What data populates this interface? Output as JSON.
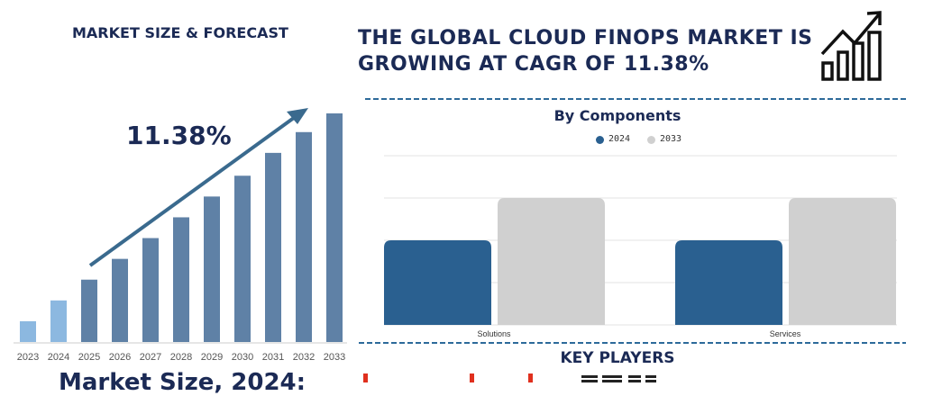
{
  "left_title": "MARKET SIZE & FORECAST",
  "main_title_line1": "THE GLOBAL CLOUD FINOPS MARKET IS",
  "main_title_line2": "GROWING AT CAGR OF 11.38%",
  "header_icon": "growth-chart-arrow-icon",
  "bottom_text": "Market Size, 2024:",
  "key_players_title": "KEY PLAYERS",
  "logos": [
    "red-logo",
    "IBM"
  ],
  "colors": {
    "navy": "#1b2a55",
    "bar_light": "#8cb8e0",
    "bar_dark": "#5f81a6",
    "series_2024": "#2a6090",
    "series_2033": "#d0d0d0",
    "dash": "#2d6a9a"
  },
  "chart_data": [
    {
      "type": "bar",
      "title": "",
      "annotation": "11.38%",
      "categories": [
        "2023",
        "2024",
        "2025",
        "2026",
        "2027",
        "2028",
        "2029",
        "2030",
        "2031",
        "2032",
        "2033"
      ],
      "values": [
        1,
        2,
        3,
        4,
        5,
        6,
        7,
        8,
        9.1,
        10.1,
        11
      ],
      "highlighted": [
        "2023",
        "2024"
      ],
      "ylim": [
        0,
        11
      ],
      "grid": false,
      "trend_arrow": true
    },
    {
      "type": "bar",
      "title": "By Components",
      "categories": [
        "Solutions",
        "Services"
      ],
      "series": [
        {
          "name": "2024",
          "values": [
            2.0,
            2.0
          ]
        },
        {
          "name": "2033",
          "values": [
            3.0,
            3.0
          ]
        }
      ],
      "ylim": [
        0,
        4
      ],
      "grid": true,
      "legend": "top-center"
    }
  ]
}
